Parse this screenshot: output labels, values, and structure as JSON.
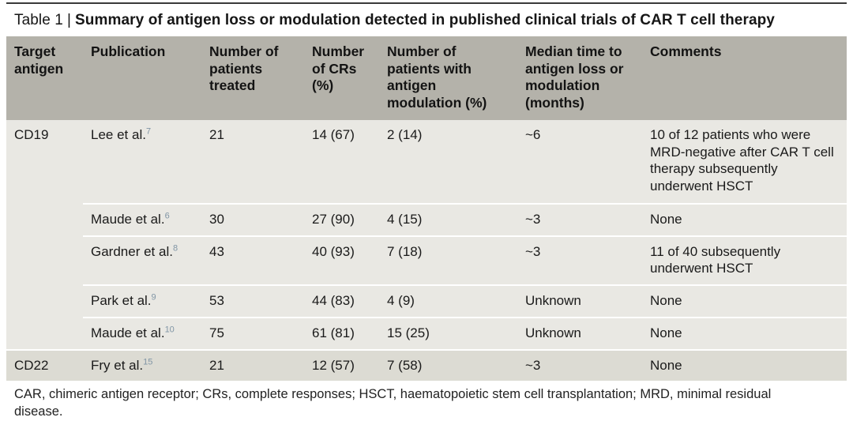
{
  "title": {
    "label": "Table 1",
    "separator": "|",
    "heading": "Summary of antigen loss or modulation detected in published clinical trials of CAR T cell therapy"
  },
  "columns": [
    "Target antigen",
    "Publication",
    "Number of patients treated",
    "Number of CRs (%)",
    "Number of patients with antigen modulation (%)",
    "Median time to antigen loss or modulation (months)",
    "Comments"
  ],
  "rows": [
    {
      "target": "CD19",
      "publication": "Lee et al.",
      "ref": "7",
      "treated": "21",
      "crs": "14 (67)",
      "modulation": "2 (14)",
      "median": "~6",
      "comments": "10 of 12 patients who were MRD-negative after CAR T cell therapy subsequently underwent HSCT"
    },
    {
      "target": "",
      "publication": "Maude et al.",
      "ref": "6",
      "treated": "30",
      "crs": "27 (90)",
      "modulation": "4 (15)",
      "median": "~3",
      "comments": "None"
    },
    {
      "target": "",
      "publication": "Gardner et al.",
      "ref": "8",
      "treated": "43",
      "crs": "40 (93)",
      "modulation": "7 (18)",
      "median": "~3",
      "comments": "11 of 40 subsequently underwent HSCT"
    },
    {
      "target": "",
      "publication": "Park et al.",
      "ref": "9",
      "treated": "53",
      "crs": "44 (83)",
      "modulation": "4 (9)",
      "median": "Unknown",
      "comments": "None"
    },
    {
      "target": "",
      "publication": "Maude et al.",
      "ref": "10",
      "treated": "75",
      "crs": "61 (81)",
      "modulation": "15 (25)",
      "median": "Unknown",
      "comments": "None"
    },
    {
      "target": "CD22",
      "publication": "Fry et al.",
      "ref": "15",
      "treated": "21",
      "crs": "12 (57)",
      "modulation": "7 (58)",
      "median": "~3",
      "comments": "None"
    }
  ],
  "footnote": "CAR, chimeric antigen receptor; CRs, complete responses; HSCT, haematopoietic stem cell transplantation; MRD, minimal residual disease.",
  "colors": {
    "header_bg": "#b4b2aa",
    "row_bg": "#e9e8e3",
    "group2_row_bg": "#dcdbd3",
    "top_rule": "#3a3a3a",
    "reference_superscript": "#8095a5",
    "text": "#1a1a1a"
  }
}
